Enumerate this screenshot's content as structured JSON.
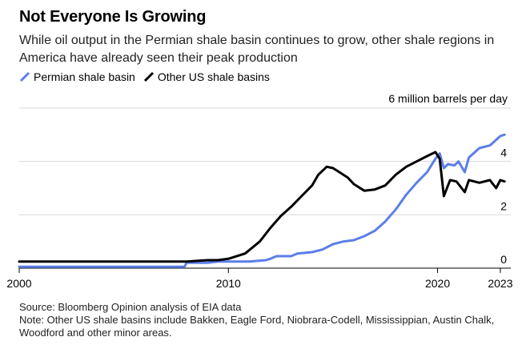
{
  "header": {
    "title": "Not Everyone Is Growing",
    "subtitle": "While oil output in the Permian shale basin continues to grow, other shale regions in America have already seen their peak production"
  },
  "footer": {
    "source": "Source: Bloomberg Opinion analysis of EIA data",
    "note": "Note: Other US shale basins include Bakken, Eagle Ford, Niobrara-Codell, Mississippian, Austin Chalk, Woodford and other minor areas."
  },
  "chart_data": {
    "type": "line",
    "title": "Not Everyone Is Growing",
    "unit_label": "6 million barrels per day",
    "xlabel": "",
    "ylabel": "million barrels per day",
    "xlim": [
      2000,
      2023.5
    ],
    "ylim": [
      0,
      6
    ],
    "y_ticks": [
      0,
      2,
      4
    ],
    "x_ticks": [
      2000,
      2010,
      2020,
      2023
    ],
    "grid": true,
    "legend_position": "top-left",
    "series": [
      {
        "name": "Permian shale basin",
        "color": "#5b7ee8",
        "points": [
          [
            2000,
            0.05
          ],
          [
            2005,
            0.05
          ],
          [
            2007.9,
            0.05
          ],
          [
            2008,
            0.2
          ],
          [
            2009,
            0.2
          ],
          [
            2009.5,
            0.25
          ],
          [
            2010,
            0.25
          ],
          [
            2011,
            0.25
          ],
          [
            2011.8,
            0.3
          ],
          [
            2012,
            0.35
          ],
          [
            2012.3,
            0.45
          ],
          [
            2013,
            0.45
          ],
          [
            2013.3,
            0.55
          ],
          [
            2014,
            0.6
          ],
          [
            2014.5,
            0.7
          ],
          [
            2015,
            0.9
          ],
          [
            2015.5,
            1.0
          ],
          [
            2016,
            1.05
          ],
          [
            2016.5,
            1.2
          ],
          [
            2017,
            1.4
          ],
          [
            2017.5,
            1.75
          ],
          [
            2018,
            2.2
          ],
          [
            2018.5,
            2.75
          ],
          [
            2019,
            3.2
          ],
          [
            2019.5,
            3.6
          ],
          [
            2019.9,
            4.1
          ],
          [
            2020.1,
            4.3
          ],
          [
            2020.3,
            3.75
          ],
          [
            2020.5,
            3.9
          ],
          [
            2020.8,
            3.85
          ],
          [
            2021,
            4.0
          ],
          [
            2021.3,
            3.6
          ],
          [
            2021.5,
            4.15
          ],
          [
            2022,
            4.5
          ],
          [
            2022.5,
            4.6
          ],
          [
            2023,
            4.95
          ],
          [
            2023.2,
            5.0
          ]
        ]
      },
      {
        "name": "Other US shale basins",
        "color": "#000000",
        "points": [
          [
            2000,
            0.25
          ],
          [
            2005,
            0.25
          ],
          [
            2008,
            0.25
          ],
          [
            2009,
            0.3
          ],
          [
            2009.5,
            0.3
          ],
          [
            2010,
            0.35
          ],
          [
            2010.8,
            0.55
          ],
          [
            2011.5,
            1.0
          ],
          [
            2012,
            1.5
          ],
          [
            2012.5,
            1.95
          ],
          [
            2013,
            2.3
          ],
          [
            2013.5,
            2.7
          ],
          [
            2014,
            3.1
          ],
          [
            2014.3,
            3.5
          ],
          [
            2014.7,
            3.8
          ],
          [
            2015,
            3.75
          ],
          [
            2015.3,
            3.6
          ],
          [
            2015.7,
            3.4
          ],
          [
            2016,
            3.15
          ],
          [
            2016.5,
            2.9
          ],
          [
            2017,
            2.95
          ],
          [
            2017.5,
            3.1
          ],
          [
            2018,
            3.5
          ],
          [
            2018.5,
            3.8
          ],
          [
            2019,
            4.0
          ],
          [
            2019.5,
            4.2
          ],
          [
            2019.9,
            4.35
          ],
          [
            2020.1,
            4.1
          ],
          [
            2020.3,
            2.7
          ],
          [
            2020.6,
            3.3
          ],
          [
            2020.9,
            3.25
          ],
          [
            2021,
            3.15
          ],
          [
            2021.3,
            2.85
          ],
          [
            2021.5,
            3.3
          ],
          [
            2022,
            3.2
          ],
          [
            2022.5,
            3.3
          ],
          [
            2022.8,
            3.0
          ],
          [
            2023,
            3.3
          ],
          [
            2023.2,
            3.25
          ]
        ]
      }
    ]
  }
}
